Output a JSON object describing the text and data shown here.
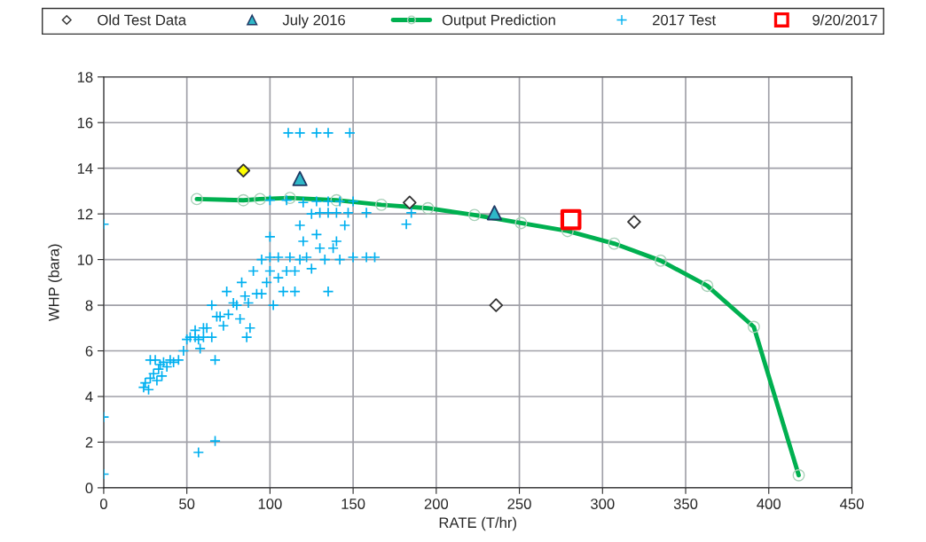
{
  "chart_data": {
    "type": "scatter",
    "xlabel": "RATE (T/hr)",
    "ylabel": "WHP (bara)",
    "xlim": [
      0,
      450
    ],
    "xticks": [
      0,
      50,
      100,
      150,
      200,
      250,
      300,
      350,
      400,
      450
    ],
    "ylim": [
      0,
      18
    ],
    "yticks": [
      0,
      2,
      4,
      6,
      8,
      10,
      12,
      14,
      16,
      18
    ],
    "grid": true,
    "legend": "top",
    "series": [
      {
        "name": "Old Test Data",
        "marker": "diamond",
        "color": "#333333",
        "colors": [
          "#ffff00",
          "#ffffff",
          "#ffffff",
          "#ffffff"
        ],
        "x": [
          84,
          184,
          236,
          319
        ],
        "values": [
          13.9,
          12.5,
          8.0,
          11.65
        ]
      },
      {
        "name": "July 2016",
        "marker": "triangle",
        "color": "#1f3864",
        "colors": [
          "#2eb8c8",
          "#2eb8c8"
        ],
        "x": [
          118,
          235
        ],
        "values": [
          13.55,
          12.05
        ]
      },
      {
        "name": "Output Prediction",
        "type": "line",
        "marker": "circle",
        "color": "#00b050",
        "x": [
          56,
          84,
          94,
          112,
          140,
          167,
          195,
          223,
          251,
          279,
          307,
          335,
          363,
          391,
          418
        ],
        "values": [
          12.65,
          12.6,
          12.65,
          12.7,
          12.6,
          12.4,
          12.25,
          11.95,
          11.6,
          11.25,
          10.7,
          9.95,
          8.85,
          7.05,
          0.55
        ]
      },
      {
        "name": "2017 Test",
        "marker": "cross",
        "color": "#00b0f0",
        "x": [
          0,
          0,
          0,
          57,
          67,
          111,
          118,
          128,
          135,
          148,
          24,
          25,
          27,
          28,
          30,
          32,
          33,
          35,
          36,
          38,
          40,
          42,
          45,
          28,
          31,
          34,
          50,
          52,
          55,
          57,
          60,
          62,
          65,
          67,
          70,
          72,
          75,
          78,
          80,
          82,
          85,
          87,
          88,
          90,
          92,
          95,
          98,
          100,
          102,
          105,
          108,
          110,
          112,
          115,
          118,
          120,
          122,
          125,
          128,
          130,
          133,
          135,
          138,
          140,
          142,
          145,
          150,
          158,
          163,
          118,
          125,
          130,
          135,
          140,
          147,
          158,
          182,
          185,
          100,
          110,
          120,
          128,
          135,
          142,
          150,
          60,
          65,
          68,
          74,
          83,
          86,
          95,
          100,
          105,
          100,
          115,
          58,
          48,
          55
        ],
        "values": [
          11.55,
          3.1,
          0.6,
          1.55,
          2.05,
          15.55,
          15.55,
          15.55,
          15.55,
          15.55,
          4.4,
          4.6,
          4.3,
          4.8,
          5.0,
          4.7,
          5.2,
          4.9,
          5.5,
          5.3,
          5.6,
          5.5,
          5.6,
          5.6,
          5.6,
          5.4,
          6.5,
          6.6,
          6.9,
          6.5,
          6.6,
          7.0,
          6.6,
          5.6,
          7.5,
          7.1,
          7.6,
          8.1,
          8.0,
          7.4,
          8.4,
          8.1,
          7.0,
          9.5,
          8.5,
          8.5,
          9.0,
          9.5,
          8.0,
          9.2,
          8.6,
          9.5,
          10.1,
          9.5,
          10.0,
          10.8,
          10.1,
          9.6,
          11.1,
          10.5,
          10.0,
          8.6,
          10.5,
          10.8,
          10.0,
          11.5,
          10.1,
          10.1,
          10.1,
          11.5,
          12.0,
          12.05,
          12.05,
          12.05,
          12.05,
          12.05,
          11.55,
          12.05,
          12.6,
          12.6,
          12.5,
          12.55,
          12.55,
          12.55,
          12.55,
          7.0,
          8.0,
          7.5,
          8.6,
          9.0,
          6.6,
          10.0,
          11.0,
          10.1,
          10.1,
          8.6,
          6.1,
          6.0,
          6.6
        ]
      },
      {
        "name": "9/20/2017",
        "marker": "square",
        "color": "#ff0000",
        "colors": [
          "#ffffff"
        ],
        "x": [
          281
        ],
        "values": [
          11.75
        ]
      }
    ]
  }
}
